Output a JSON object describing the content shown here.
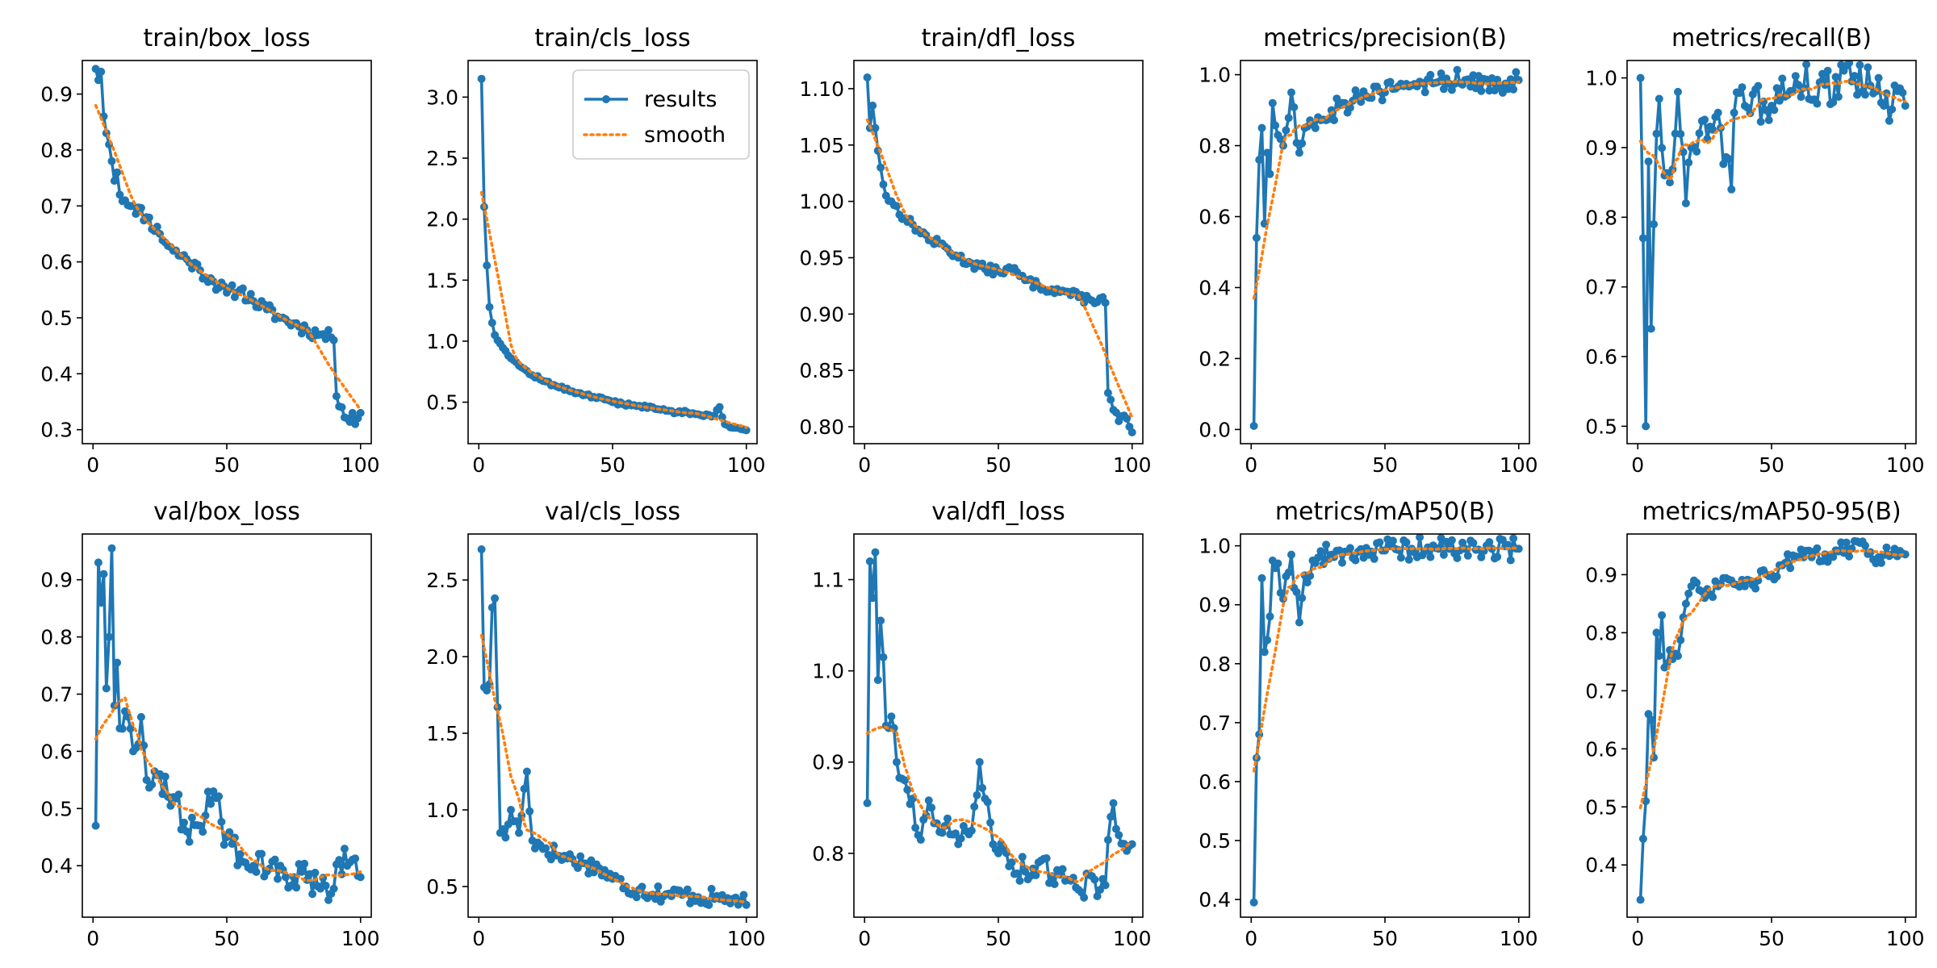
{
  "colors": {
    "results": "#1f77b4",
    "smooth": "#ff7f0e",
    "axes": "#000000",
    "background": "#ffffff"
  },
  "legend": {
    "placement": "top-right",
    "subplot": 1,
    "entries": [
      "results",
      "smooth"
    ]
  },
  "chart_data": [
    {
      "type": "line",
      "title": "train/box_loss",
      "xlabel": "",
      "ylabel": "",
      "xlim": [
        -4,
        104
      ],
      "ylim": [
        0.275,
        0.96
      ],
      "xticks": [
        0,
        50,
        100
      ],
      "yticks": [
        0.3,
        0.4,
        0.5,
        0.6,
        0.7,
        0.8,
        0.9
      ],
      "ytick_decimals": 1,
      "keypoints": [
        [
          1,
          0.945
        ],
        [
          2,
          0.925
        ],
        [
          3,
          0.94
        ],
        [
          4,
          0.86
        ],
        [
          5,
          0.83
        ],
        [
          6,
          0.81
        ],
        [
          7,
          0.78
        ],
        [
          8,
          0.745
        ],
        [
          9,
          0.76
        ],
        [
          10,
          0.72
        ],
        [
          12,
          0.71
        ],
        [
          15,
          0.7
        ],
        [
          20,
          0.68
        ],
        [
          25,
          0.65
        ],
        [
          30,
          0.62
        ],
        [
          35,
          0.605
        ],
        [
          40,
          0.585
        ],
        [
          45,
          0.565
        ],
        [
          50,
          0.545
        ],
        [
          55,
          0.55
        ],
        [
          60,
          0.53
        ],
        [
          65,
          0.515
        ],
        [
          70,
          0.5
        ],
        [
          75,
          0.49
        ],
        [
          80,
          0.478
        ],
        [
          85,
          0.47
        ],
        [
          89,
          0.465
        ],
        [
          90,
          0.46
        ],
        [
          91,
          0.36
        ],
        [
          93,
          0.34
        ],
        [
          95,
          0.32
        ],
        [
          97,
          0.33
        ],
        [
          98,
          0.31
        ],
        [
          100,
          0.33
        ]
      ],
      "noise": 0.012,
      "noise_seed": 11
    },
    {
      "type": "line",
      "title": "train/cls_loss",
      "xlabel": "",
      "ylabel": "",
      "xlim": [
        -4,
        104
      ],
      "ylim": [
        0.16,
        3.3
      ],
      "xticks": [
        0,
        50,
        100
      ],
      "yticks": [
        0.5,
        1.0,
        1.5,
        2.0,
        2.5,
        3.0
      ],
      "ytick_decimals": 1,
      "keypoints": [
        [
          1,
          3.15
        ],
        [
          2,
          2.1
        ],
        [
          3,
          1.62
        ],
        [
          4,
          1.28
        ],
        [
          5,
          1.15
        ],
        [
          6,
          1.05
        ],
        [
          8,
          0.98
        ],
        [
          10,
          0.92
        ],
        [
          15,
          0.8
        ],
        [
          20,
          0.72
        ],
        [
          25,
          0.67
        ],
        [
          30,
          0.62
        ],
        [
          40,
          0.56
        ],
        [
          50,
          0.5
        ],
        [
          60,
          0.47
        ],
        [
          70,
          0.43
        ],
        [
          80,
          0.41
        ],
        [
          88,
          0.39
        ],
        [
          90,
          0.46
        ],
        [
          92,
          0.32
        ],
        [
          95,
          0.29
        ],
        [
          100,
          0.27
        ]
      ],
      "noise": 0.015,
      "noise_seed": 12
    },
    {
      "type": "line",
      "title": "train/dfl_loss",
      "xlabel": "",
      "ylabel": "",
      "xlim": [
        -4,
        104
      ],
      "ylim": [
        0.785,
        1.125
      ],
      "xticks": [
        0,
        50,
        100
      ],
      "yticks": [
        0.8,
        0.85,
        0.9,
        0.95,
        1.0,
        1.05,
        1.1
      ],
      "ytick_decimals": 2,
      "keypoints": [
        [
          1,
          1.11
        ],
        [
          2,
          1.065
        ],
        [
          3,
          1.085
        ],
        [
          4,
          1.065
        ],
        [
          5,
          1.045
        ],
        [
          6,
          1.03
        ],
        [
          7,
          1.015
        ],
        [
          8,
          1.005
        ],
        [
          10,
          1.0
        ],
        [
          15,
          0.985
        ],
        [
          20,
          0.975
        ],
        [
          25,
          0.965
        ],
        [
          30,
          0.96
        ],
        [
          35,
          0.95
        ],
        [
          40,
          0.945
        ],
        [
          45,
          0.94
        ],
        [
          50,
          0.938
        ],
        [
          55,
          0.94
        ],
        [
          60,
          0.93
        ],
        [
          65,
          0.925
        ],
        [
          70,
          0.922
        ],
        [
          75,
          0.92
        ],
        [
          80,
          0.915
        ],
        [
          85,
          0.912
        ],
        [
          89,
          0.915
        ],
        [
          90,
          0.91
        ],
        [
          91,
          0.83
        ],
        [
          93,
          0.815
        ],
        [
          95,
          0.805
        ],
        [
          97,
          0.81
        ],
        [
          99,
          0.8
        ],
        [
          100,
          0.795
        ]
      ],
      "noise": 0.004,
      "noise_seed": 13
    },
    {
      "type": "line",
      "title": "metrics/precision(B)",
      "xlabel": "",
      "ylabel": "",
      "xlim": [
        -4,
        104
      ],
      "ylim": [
        -0.04,
        1.04
      ],
      "xticks": [
        0,
        50,
        100
      ],
      "yticks": [
        0.0,
        0.2,
        0.4,
        0.6,
        0.8,
        1.0
      ],
      "ytick_decimals": 1,
      "keypoints": [
        [
          1,
          0.01
        ],
        [
          2,
          0.54
        ],
        [
          3,
          0.76
        ],
        [
          4,
          0.85
        ],
        [
          5,
          0.58
        ],
        [
          6,
          0.78
        ],
        [
          7,
          0.72
        ],
        [
          8,
          0.92
        ],
        [
          10,
          0.83
        ],
        [
          12,
          0.8
        ],
        [
          15,
          0.95
        ],
        [
          18,
          0.78
        ],
        [
          20,
          0.85
        ],
        [
          25,
          0.88
        ],
        [
          30,
          0.9
        ],
        [
          35,
          0.92
        ],
        [
          40,
          0.94
        ],
        [
          50,
          0.95
        ],
        [
          60,
          0.97
        ],
        [
          70,
          0.98
        ],
        [
          80,
          0.985
        ],
        [
          90,
          0.99
        ],
        [
          95,
          0.975
        ],
        [
          100,
          0.985
        ]
      ],
      "noise": 0.035,
      "noise_seed": 14
    },
    {
      "type": "line",
      "title": "metrics/recall(B)",
      "xlabel": "",
      "ylabel": "",
      "xlim": [
        -4,
        104
      ],
      "ylim": [
        0.475,
        1.025
      ],
      "xticks": [
        0,
        50,
        100
      ],
      "yticks": [
        0.5,
        0.6,
        0.7,
        0.8,
        0.9,
        1.0
      ],
      "ytick_decimals": 1,
      "keypoints": [
        [
          1,
          1.0
        ],
        [
          2,
          0.77
        ],
        [
          3,
          0.5
        ],
        [
          4,
          0.88
        ],
        [
          5,
          0.64
        ],
        [
          6,
          0.79
        ],
        [
          7,
          0.92
        ],
        [
          8,
          0.97
        ],
        [
          10,
          0.86
        ],
        [
          12,
          0.85
        ],
        [
          15,
          0.98
        ],
        [
          18,
          0.82
        ],
        [
          20,
          0.9
        ],
        [
          25,
          0.94
        ],
        [
          30,
          0.95
        ],
        [
          35,
          0.84
        ],
        [
          36,
          0.95
        ],
        [
          40,
          0.96
        ],
        [
          50,
          0.96
        ],
        [
          60,
          0.99
        ],
        [
          70,
          0.99
        ],
        [
          80,
          0.995
        ],
        [
          90,
          1.0
        ],
        [
          92,
          0.96
        ],
        [
          95,
          0.955
        ],
        [
          98,
          0.985
        ],
        [
          100,
          0.96
        ]
      ],
      "noise": 0.03,
      "noise_seed": 15
    },
    {
      "type": "line",
      "title": "val/box_loss",
      "xlabel": "",
      "ylabel": "",
      "xlim": [
        -4,
        104
      ],
      "ylim": [
        0.31,
        0.98
      ],
      "xticks": [
        0,
        50,
        100
      ],
      "yticks": [
        0.4,
        0.5,
        0.6,
        0.7,
        0.8,
        0.9
      ],
      "ytick_decimals": 1,
      "keypoints": [
        [
          1,
          0.47
        ],
        [
          2,
          0.93
        ],
        [
          3,
          0.86
        ],
        [
          4,
          0.91
        ],
        [
          5,
          0.71
        ],
        [
          6,
          0.8
        ],
        [
          7,
          0.955
        ],
        [
          8,
          0.68
        ],
        [
          9,
          0.755
        ],
        [
          10,
          0.64
        ],
        [
          12,
          0.67
        ],
        [
          15,
          0.6
        ],
        [
          18,
          0.66
        ],
        [
          20,
          0.55
        ],
        [
          25,
          0.56
        ],
        [
          30,
          0.52
        ],
        [
          35,
          0.46
        ],
        [
          40,
          0.47
        ],
        [
          45,
          0.53
        ],
        [
          50,
          0.45
        ],
        [
          55,
          0.42
        ],
        [
          60,
          0.4
        ],
        [
          65,
          0.39
        ],
        [
          70,
          0.4
        ],
        [
          75,
          0.38
        ],
        [
          80,
          0.375
        ],
        [
          85,
          0.36
        ],
        [
          88,
          0.34
        ],
        [
          90,
          0.36
        ],
        [
          92,
          0.41
        ],
        [
          95,
          0.4
        ],
        [
          100,
          0.38
        ]
      ],
      "noise": 0.03,
      "noise_seed": 16
    },
    {
      "type": "line",
      "title": "val/cls_loss",
      "xlabel": "",
      "ylabel": "",
      "xlim": [
        -4,
        104
      ],
      "ylim": [
        0.3,
        2.8
      ],
      "xticks": [
        0,
        50,
        100
      ],
      "yticks": [
        0.5,
        1.0,
        1.5,
        2.0,
        2.5
      ],
      "ytick_decimals": 1,
      "keypoints": [
        [
          1,
          2.7
        ],
        [
          2,
          1.8
        ],
        [
          4,
          1.82
        ],
        [
          5,
          2.32
        ],
        [
          6,
          2.38
        ],
        [
          7,
          1.67
        ],
        [
          8,
          0.85
        ],
        [
          10,
          0.82
        ],
        [
          12,
          1.0
        ],
        [
          15,
          0.85
        ],
        [
          18,
          1.25
        ],
        [
          20,
          0.8
        ],
        [
          25,
          0.75
        ],
        [
          30,
          0.7
        ],
        [
          35,
          0.68
        ],
        [
          40,
          0.65
        ],
        [
          45,
          0.62
        ],
        [
          50,
          0.55
        ],
        [
          55,
          0.5
        ],
        [
          60,
          0.48
        ],
        [
          70,
          0.45
        ],
        [
          80,
          0.44
        ],
        [
          90,
          0.42
        ],
        [
          95,
          0.42
        ],
        [
          100,
          0.38
        ]
      ],
      "noise": 0.06,
      "noise_seed": 17
    },
    {
      "type": "line",
      "title": "val/dfl_loss",
      "xlabel": "",
      "ylabel": "",
      "xlim": [
        -4,
        104
      ],
      "ylim": [
        0.73,
        1.15
      ],
      "xticks": [
        0,
        50,
        100
      ],
      "yticks": [
        0.8,
        0.9,
        1.0,
        1.1
      ],
      "ytick_decimals": 1,
      "keypoints": [
        [
          1,
          0.855
        ],
        [
          2,
          1.12
        ],
        [
          3,
          1.08
        ],
        [
          4,
          1.13
        ],
        [
          5,
          0.99
        ],
        [
          6,
          1.055
        ],
        [
          7,
          1.015
        ],
        [
          8,
          0.94
        ],
        [
          10,
          0.95
        ],
        [
          12,
          0.9
        ],
        [
          15,
          0.88
        ],
        [
          18,
          0.86
        ],
        [
          20,
          0.82
        ],
        [
          25,
          0.85
        ],
        [
          30,
          0.83
        ],
        [
          35,
          0.81
        ],
        [
          40,
          0.825
        ],
        [
          43,
          0.9
        ],
        [
          45,
          0.86
        ],
        [
          50,
          0.8
        ],
        [
          55,
          0.79
        ],
        [
          60,
          0.78
        ],
        [
          65,
          0.79
        ],
        [
          70,
          0.775
        ],
        [
          75,
          0.77
        ],
        [
          80,
          0.76
        ],
        [
          85,
          0.775
        ],
        [
          88,
          0.76
        ],
        [
          90,
          0.765
        ],
        [
          92,
          0.84
        ],
        [
          93,
          0.855
        ],
        [
          95,
          0.82
        ],
        [
          100,
          0.81
        ]
      ],
      "noise": 0.015,
      "noise_seed": 18
    },
    {
      "type": "line",
      "title": "metrics/mAP50(B)",
      "xlabel": "",
      "ylabel": "",
      "xlim": [
        -4,
        104
      ],
      "ylim": [
        0.37,
        1.02
      ],
      "xticks": [
        0,
        50,
        100
      ],
      "yticks": [
        0.4,
        0.5,
        0.6,
        0.7,
        0.8,
        0.9,
        1.0
      ],
      "ytick_decimals": 1,
      "keypoints": [
        [
          1,
          0.395
        ],
        [
          2,
          0.64
        ],
        [
          3,
          0.68
        ],
        [
          4,
          0.945
        ],
        [
          5,
          0.82
        ],
        [
          6,
          0.84
        ],
        [
          7,
          0.88
        ],
        [
          8,
          0.975
        ],
        [
          10,
          0.97
        ],
        [
          12,
          0.91
        ],
        [
          15,
          0.985
        ],
        [
          18,
          0.87
        ],
        [
          20,
          0.95
        ],
        [
          25,
          0.98
        ],
        [
          30,
          0.985
        ],
        [
          35,
          0.99
        ],
        [
          40,
          0.99
        ],
        [
          45,
          0.99
        ],
        [
          50,
          0.992
        ],
        [
          55,
          0.993
        ],
        [
          60,
          0.995
        ],
        [
          70,
          0.995
        ],
        [
          80,
          0.995
        ],
        [
          90,
          0.995
        ],
        [
          100,
          0.995
        ]
      ],
      "noise": 0.02,
      "noise_seed": 19
    },
    {
      "type": "line",
      "title": "metrics/mAP50-95(B)",
      "xlabel": "",
      "ylabel": "",
      "xlim": [
        -4,
        104
      ],
      "ylim": [
        0.31,
        0.97
      ],
      "xticks": [
        0,
        50,
        100
      ],
      "yticks": [
        0.4,
        0.5,
        0.6,
        0.7,
        0.8,
        0.9
      ],
      "ytick_decimals": 1,
      "keypoints": [
        [
          1,
          0.34
        ],
        [
          2,
          0.445
        ],
        [
          3,
          0.51
        ],
        [
          4,
          0.66
        ],
        [
          5,
          0.65
        ],
        [
          6,
          0.585
        ],
        [
          7,
          0.8
        ],
        [
          8,
          0.76
        ],
        [
          9,
          0.83
        ],
        [
          10,
          0.74
        ],
        [
          12,
          0.77
        ],
        [
          15,
          0.76
        ],
        [
          18,
          0.85
        ],
        [
          20,
          0.88
        ],
        [
          25,
          0.86
        ],
        [
          30,
          0.88
        ],
        [
          35,
          0.89
        ],
        [
          40,
          0.88
        ],
        [
          45,
          0.89
        ],
        [
          50,
          0.9
        ],
        [
          55,
          0.92
        ],
        [
          60,
          0.93
        ],
        [
          65,
          0.93
        ],
        [
          70,
          0.935
        ],
        [
          75,
          0.94
        ],
        [
          80,
          0.945
        ],
        [
          85,
          0.95
        ],
        [
          90,
          0.93
        ],
        [
          95,
          0.935
        ],
        [
          100,
          0.935
        ]
      ],
      "noise": 0.015,
      "noise_seed": 20
    }
  ]
}
